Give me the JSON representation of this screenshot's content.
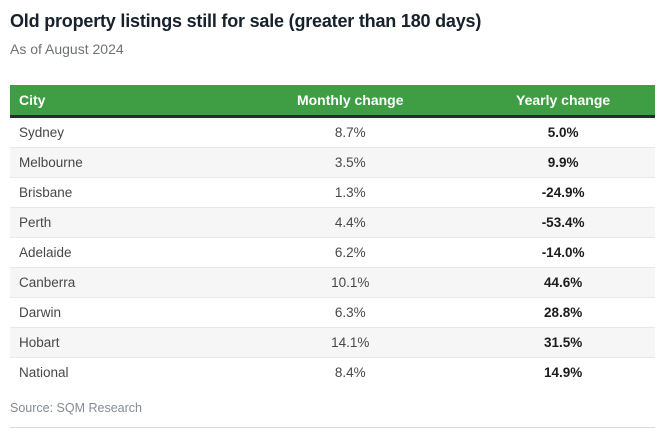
{
  "header": {
    "title": "Old property listings still for sale (greater than 180 days)",
    "subtitle": "As of August 2024"
  },
  "table": {
    "columns": [
      "City",
      "Monthly change",
      "Yearly change"
    ],
    "rows": [
      {
        "city": "Sydney",
        "monthly": "8.7%",
        "yearly": "5.0%"
      },
      {
        "city": "Melbourne",
        "monthly": "3.5%",
        "yearly": "9.9%"
      },
      {
        "city": "Brisbane",
        "monthly": "1.3%",
        "yearly": "-24.9%"
      },
      {
        "city": "Perth",
        "monthly": "4.4%",
        "yearly": "-53.4%"
      },
      {
        "city": "Adelaide",
        "monthly": "6.2%",
        "yearly": "-14.0%"
      },
      {
        "city": "Canberra",
        "monthly": "10.1%",
        "yearly": "44.6%"
      },
      {
        "city": "Darwin",
        "monthly": "6.3%",
        "yearly": "28.8%"
      },
      {
        "city": "Hobart",
        "monthly": "14.1%",
        "yearly": "31.5%"
      },
      {
        "city": "National",
        "monthly": "8.4%",
        "yearly": "14.9%"
      }
    ]
  },
  "footer": {
    "source": "Source: SQM Research"
  },
  "colors": {
    "header_green": "#3f9e44",
    "header_border": "#2a2a2a",
    "row_alt": "#f6f6f6"
  },
  "chart_data": {
    "type": "table",
    "title": "Old property listings still for sale (greater than 180 days)",
    "subtitle": "As of August 2024",
    "columns": [
      "City",
      "Monthly change",
      "Yearly change"
    ],
    "rows": [
      [
        "Sydney",
        "8.7%",
        "5.0%"
      ],
      [
        "Melbourne",
        "3.5%",
        "9.9%"
      ],
      [
        "Brisbane",
        "1.3%",
        "-24.9%"
      ],
      [
        "Perth",
        "4.4%",
        "-53.4%"
      ],
      [
        "Adelaide",
        "6.2%",
        "-14.0%"
      ],
      [
        "Canberra",
        "10.1%",
        "44.6%"
      ],
      [
        "Darwin",
        "6.3%",
        "28.8%"
      ],
      [
        "Hobart",
        "14.1%",
        "31.5%"
      ],
      [
        "National",
        "8.4%",
        "14.9%"
      ]
    ],
    "source": "Source: SQM Research"
  }
}
